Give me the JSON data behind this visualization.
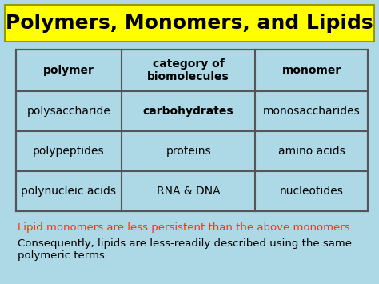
{
  "title": "Polymers, Monomers, and Lipids",
  "title_bg": "#FFFF00",
  "title_color": "#000000",
  "background_color": "#ADD8E6",
  "table_bg": "#ADD8E6",
  "table_headers": [
    "polymer",
    "category of\nbiomolecules",
    "monomer"
  ],
  "table_rows": [
    [
      "polysaccharide",
      "carbohydrates",
      "monosaccharides"
    ],
    [
      "polypeptides",
      "proteins",
      "amino acids"
    ],
    [
      "polynucleic acids",
      "RNA & DNA",
      "nucleotides"
    ]
  ],
  "note1": "Lipid monomers are less persistent than the above monomers",
  "note1_color": "#FF3300",
  "note2": "Consequently, lipids are less-readily described using the same\npolymeric terms",
  "note2_color": "#000000",
  "border_color": "#555555",
  "title_fontsize": 18,
  "header_fontsize": 10,
  "cell_fontsize": 10,
  "note1_fontsize": 9.5,
  "note2_fontsize": 9.5,
  "fig_width": 4.74,
  "fig_height": 3.55,
  "dpi": 100
}
